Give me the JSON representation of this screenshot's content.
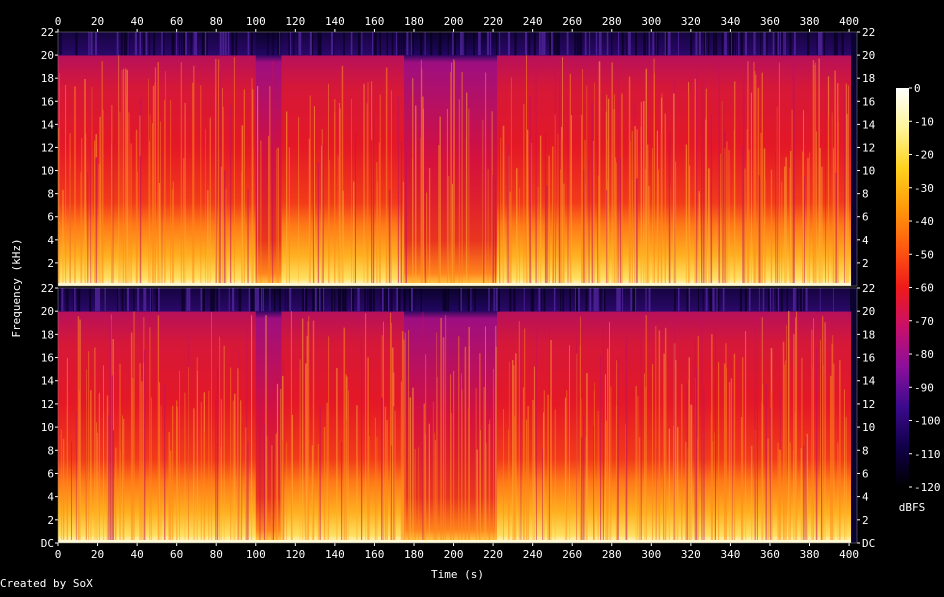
{
  "chart_data": {
    "type": "heatmap",
    "title": "",
    "xlabel": "Time (s)",
    "ylabel": "Frequency (kHz)",
    "xlim": [
      0,
      404
    ],
    "ylim_khz": [
      0,
      22
    ],
    "x_ticks": [
      "0",
      "20",
      "40",
      "60",
      "80",
      "100",
      "120",
      "140",
      "160",
      "180",
      "200",
      "220",
      "240",
      "260",
      "280",
      "300",
      "320",
      "340",
      "360",
      "380",
      "400"
    ],
    "y_ticks": [
      "DC",
      "2",
      "4",
      "6",
      "8",
      "10",
      "12",
      "14",
      "16",
      "18",
      "20",
      "22"
    ],
    "channels": 2,
    "colorbar": {
      "label": "dBFS",
      "range": [
        -120,
        0
      ],
      "ticks": [
        "0",
        "-10",
        "-20",
        "-30",
        "-40",
        "-50",
        "-60",
        "-70",
        "-80",
        "-90",
        "-100",
        "-110",
        "-120"
      ],
      "colors": [
        "#000000",
        "#100048",
        "#3a0a8c",
        "#8a0f9c",
        "#c8106a",
        "#ee1a1a",
        "#ff5a10",
        "#ff9a0a",
        "#ffd21e",
        "#fff59a",
        "#ffffff"
      ]
    },
    "spectral_profile": {
      "lowpass_cutoff_khz": 20,
      "quiet_segments_s": [
        [
          100,
          113
        ],
        [
          175,
          222
        ]
      ],
      "end_of_audio_s": 401
    }
  },
  "footer": {
    "credit": "Created by SoX"
  }
}
